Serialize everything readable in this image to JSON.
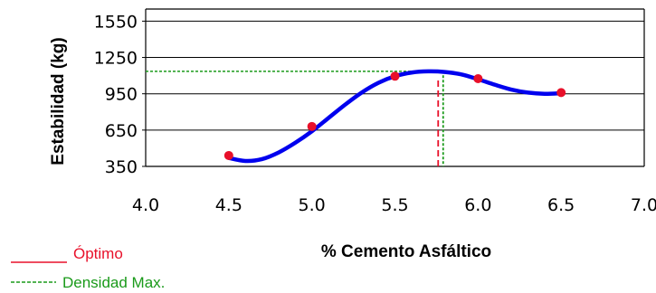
{
  "chart_data": {
    "type": "line",
    "xlabel": "% Cemento Asfáltico",
    "ylabel": "Estabilidad (kg)",
    "xlim": [
      4.0,
      7.0
    ],
    "ylim": [
      350,
      1650
    ],
    "x_ticks": [
      "4.0",
      "4.5",
      "5.0",
      "5.5",
      "6.0",
      "6.5",
      "7.0"
    ],
    "y_ticks": [
      "350",
      "650",
      "950",
      "1250",
      "1550"
    ],
    "grid": "horizontal",
    "series": [
      {
        "x": [
          4.5,
          5.0,
          5.5,
          6.0,
          6.5
        ],
        "values": [
          440,
          680,
          1095,
          1075,
          960
        ],
        "marker_color": "#e8102a",
        "line_color": "#0000ee"
      }
    ],
    "fit_curve_x": [
      4.5,
      4.6,
      4.7,
      4.8,
      4.9,
      5.0,
      5.1,
      5.2,
      5.3,
      5.4,
      5.5,
      5.6,
      5.7,
      5.8,
      5.9,
      6.0,
      6.1,
      6.2,
      6.3,
      6.4,
      6.5
    ],
    "fit_curve_y": [
      420,
      395,
      410,
      465,
      545,
      640,
      750,
      860,
      960,
      1040,
      1095,
      1125,
      1135,
      1130,
      1110,
      1070,
      1025,
      985,
      960,
      950,
      955
    ],
    "reference_lines": [
      {
        "name": "Óptimo",
        "axis": "x",
        "value": 5.76,
        "color": "#e8102a",
        "style": "dashed"
      },
      {
        "name": "Densidad Max.",
        "axis": "x",
        "value": 5.79,
        "color": "#1a9a1a",
        "style": "dotted"
      },
      {
        "name": "Densidad Max.",
        "axis": "y",
        "value": 1135,
        "color": "#1a9a1a",
        "style": "dotted"
      }
    ],
    "legend": [
      {
        "label": "Óptimo",
        "color": "#e8102a",
        "style": "solid"
      },
      {
        "label": "Densidad Max.",
        "color": "#1a9a1a",
        "style": "dashed"
      }
    ],
    "legend_position": "bottom-left"
  }
}
